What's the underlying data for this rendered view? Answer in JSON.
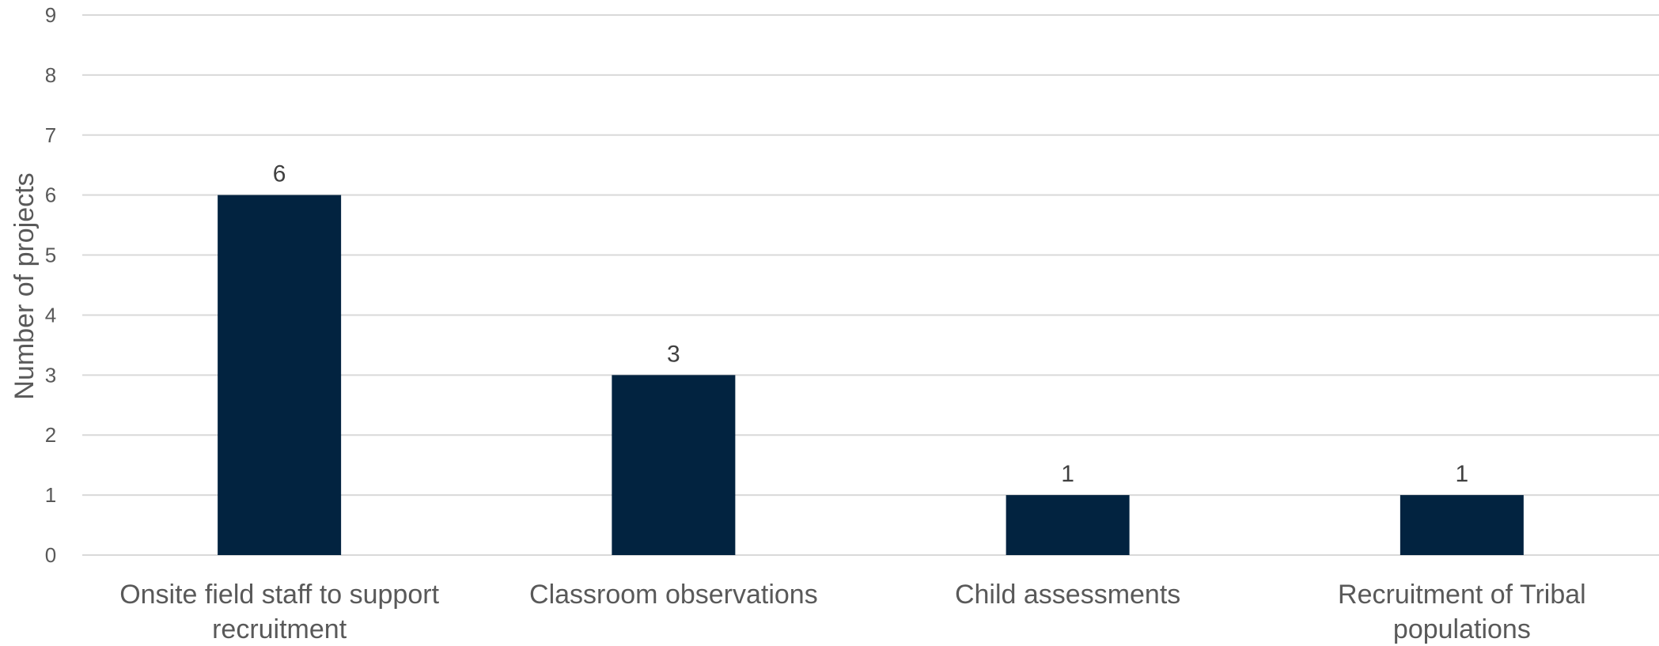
{
  "chart_data": {
    "type": "bar",
    "title": "",
    "xlabel": "",
    "ylabel": "Number of projects",
    "categories": [
      [
        "Onsite field staff to support",
        "recruitment"
      ],
      [
        "Classroom observations"
      ],
      [
        "Child assessments"
      ],
      [
        "Recruitment of Tribal",
        "populations"
      ]
    ],
    "values": [
      6,
      3,
      1,
      1
    ],
    "ylim": [
      0,
      9
    ],
    "yticks": [
      0,
      1,
      2,
      3,
      4,
      5,
      6,
      7,
      8,
      9
    ],
    "grid": true,
    "legend": "none",
    "bar_color": "#022340",
    "data_labels": true
  }
}
